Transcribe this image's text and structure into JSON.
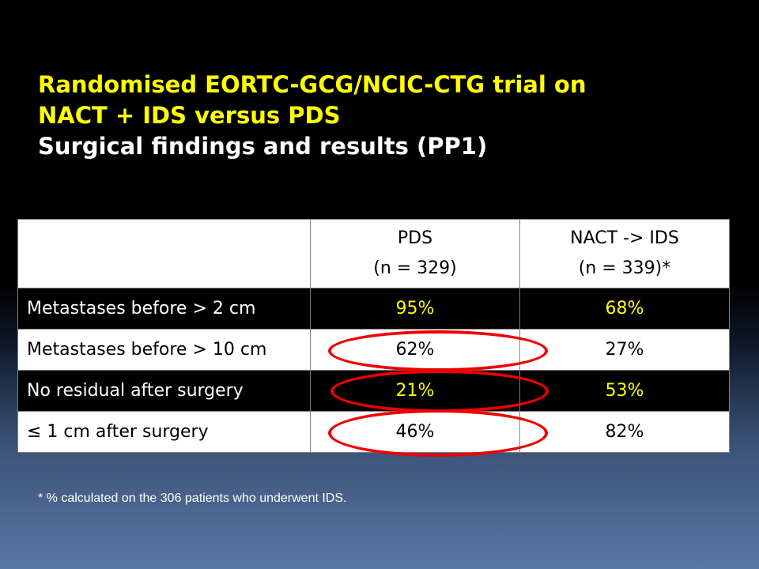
{
  "title": {
    "line1": "Randomised EORTC-GCG/NCIC-CTG trial on",
    "line2": "NACT + IDS versus PDS",
    "line3": "Surgical findings and results (PP1)"
  },
  "table": {
    "headers": [
      {
        "line1": "",
        "line2": ""
      },
      {
        "line1": "PDS",
        "line2": "(n = 329)"
      },
      {
        "line1": "NACT -> IDS",
        "line2": "(n = 339)*"
      }
    ],
    "rows": [
      {
        "label": "Metastases before > 2 cm",
        "pds": "95%",
        "nact": "68%"
      },
      {
        "label": "Metastases before > 10 cm",
        "pds": "62%",
        "nact": "27%"
      },
      {
        "label": "No residual after surgery",
        "pds": "21%",
        "nact": "53%"
      },
      {
        "label": "≤ 1 cm after surgery",
        "pds": "46%",
        "nact": "82%"
      }
    ]
  },
  "footnote": "* % calculated on the 306 patients who underwent IDS.",
  "colors": {
    "title_yellow": "#ffff00",
    "highlight_red": "#ee0000",
    "bg_top": "#000000",
    "bg_bottom": "#5a76a6"
  }
}
